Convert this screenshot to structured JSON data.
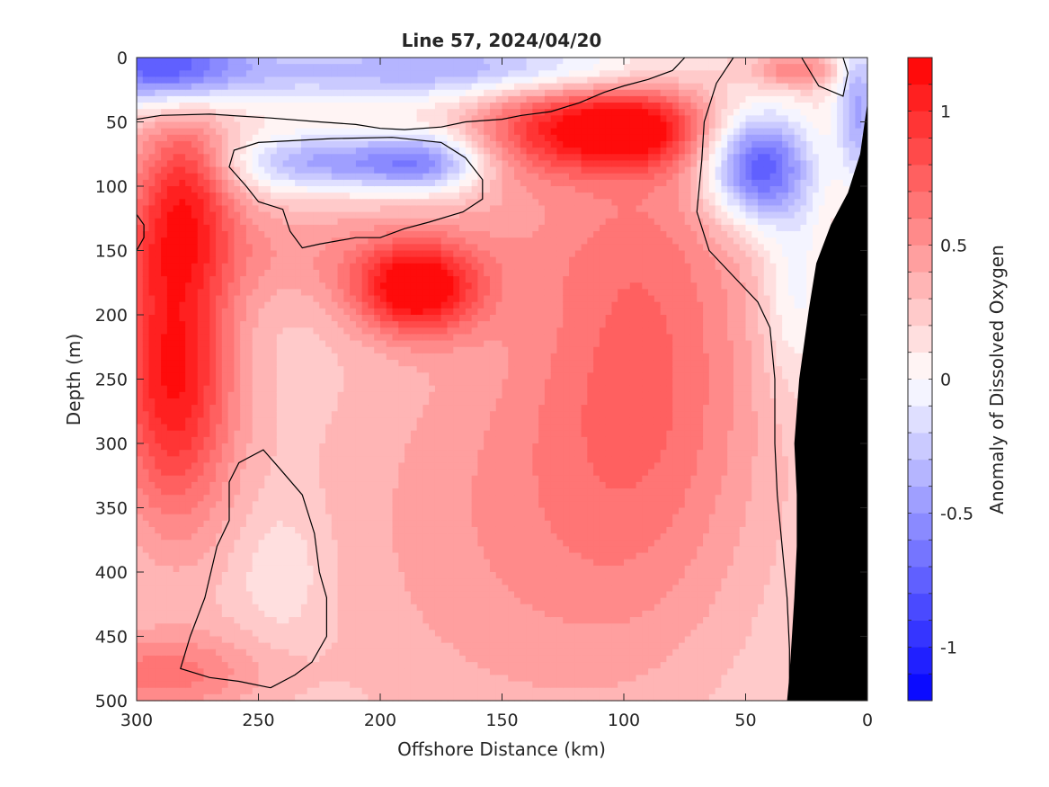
{
  "chart_data": {
    "type": "heatmap",
    "title": "Line 57, 2024/04/20",
    "xlabel": "Offshore Distance (km)",
    "ylabel": "Depth (m)",
    "xlim": [
      300,
      0
    ],
    "ylim": [
      500,
      0
    ],
    "x_ticks": [
      300,
      250,
      200,
      150,
      100,
      50,
      0
    ],
    "x_tick_labels": [
      "300",
      "250",
      "200",
      "150",
      "100",
      "50",
      "0"
    ],
    "y_ticks": [
      0,
      50,
      100,
      150,
      200,
      250,
      300,
      350,
      400,
      450,
      500
    ],
    "y_tick_labels": [
      "0",
      "50",
      "100",
      "150",
      "200",
      "250",
      "300",
      "350",
      "400",
      "450",
      "500"
    ],
    "colorbar": {
      "label": "Anomaly of Dissolved Oxygen",
      "range": [
        -1.2,
        1.2
      ],
      "ticks": [
        1,
        0.5,
        0,
        -0.5,
        -1
      ],
      "tick_labels": [
        "1",
        "0.5",
        "0",
        "-0.5",
        "-1"
      ],
      "levels": 24,
      "low_color": "#0000ff",
      "mid_color": "#ffffff",
      "high_color": "#ff0000"
    },
    "features": [
      {
        "kind": "negative",
        "x": 290,
        "y": 5,
        "sx": 22,
        "sy": 22,
        "amp": -0.75
      },
      {
        "kind": "negative",
        "x": 215,
        "y": 10,
        "sx": 80,
        "sy": 18,
        "amp": -0.45
      },
      {
        "kind": "negative",
        "x": 140,
        "y": 8,
        "sx": 40,
        "sy": 15,
        "amp": -0.3
      },
      {
        "kind": "negative",
        "x": 225,
        "y": 82,
        "sx": 25,
        "sy": 16,
        "amp": -0.6
      },
      {
        "kind": "negative",
        "x": 182,
        "y": 82,
        "sx": 18,
        "sy": 16,
        "amp": -0.7
      },
      {
        "kind": "negative",
        "x": 45,
        "y": 85,
        "sx": 15,
        "sy": 30,
        "amp": -1.05
      },
      {
        "kind": "negative",
        "x": 30,
        "y": 180,
        "sx": 10,
        "sy": 55,
        "amp": -0.3
      },
      {
        "kind": "negative",
        "x": 4,
        "y": 40,
        "sx": 6,
        "sy": 40,
        "amp": -0.6
      },
      {
        "kind": "negative",
        "x": 240,
        "y": 400,
        "sx": 12,
        "sy": 35,
        "amp": -0.15
      },
      {
        "kind": "positive",
        "x": 285,
        "y": 240,
        "sx": 18,
        "sy": 90,
        "amp": 0.95
      },
      {
        "kind": "positive",
        "x": 280,
        "y": 95,
        "sx": 14,
        "sy": 40,
        "amp": 0.55
      },
      {
        "kind": "positive",
        "x": 185,
        "y": 180,
        "sx": 18,
        "sy": 25,
        "amp": 0.95
      },
      {
        "kind": "positive",
        "x": 100,
        "y": 55,
        "sx": 22,
        "sy": 22,
        "amp": 0.95
      },
      {
        "kind": "positive",
        "x": 140,
        "y": 55,
        "sx": 20,
        "sy": 30,
        "amp": 0.45
      },
      {
        "kind": "positive",
        "x": 90,
        "y": 220,
        "sx": 35,
        "sy": 150,
        "amp": 0.45
      },
      {
        "kind": "positive",
        "x": 150,
        "y": 360,
        "sx": 60,
        "sy": 140,
        "amp": 0.3
      },
      {
        "kind": "positive",
        "x": 240,
        "y": 150,
        "sx": 70,
        "sy": 30,
        "amp": 0.25
      },
      {
        "kind": "positive",
        "x": 290,
        "y": 480,
        "sx": 30,
        "sy": 25,
        "amp": 0.45
      },
      {
        "kind": "positive",
        "x": 30,
        "y": 10,
        "sx": 12,
        "sy": 10,
        "amp": 0.45
      }
    ],
    "zero_contours": [
      [
        [
          300,
          48
        ],
        [
          290,
          45
        ],
        [
          270,
          44
        ],
        [
          245,
          47
        ],
        [
          225,
          50
        ],
        [
          210,
          52
        ],
        [
          200,
          55
        ],
        [
          190,
          56
        ],
        [
          175,
          54
        ],
        [
          165,
          50
        ],
        [
          158,
          49
        ],
        [
          150,
          48
        ],
        [
          142,
          45
        ],
        [
          130,
          42
        ],
        [
          118,
          35
        ],
        [
          108,
          27
        ],
        [
          100,
          22
        ],
        [
          90,
          17
        ],
        [
          80,
          10
        ],
        [
          75,
          0
        ]
      ],
      [
        [
          195,
          62
        ],
        [
          220,
          63
        ],
        [
          250,
          66
        ],
        [
          260,
          72
        ],
        [
          262,
          85
        ],
        [
          255,
          100
        ],
        [
          250,
          112
        ],
        [
          240,
          118
        ],
        [
          237,
          135
        ],
        [
          232,
          148
        ],
        [
          225,
          145
        ],
        [
          210,
          140
        ],
        [
          200,
          140
        ],
        [
          190,
          133
        ],
        [
          180,
          128
        ],
        [
          166,
          120
        ],
        [
          158,
          110
        ],
        [
          158,
          95
        ],
        [
          165,
          78
        ],
        [
          175,
          66
        ],
        [
          195,
          62
        ]
      ],
      [
        [
          245,
          490
        ],
        [
          235,
          480
        ],
        [
          228,
          470
        ],
        [
          222,
          450
        ],
        [
          222,
          420
        ],
        [
          225,
          400
        ],
        [
          227,
          370
        ],
        [
          232,
          340
        ],
        [
          242,
          318
        ],
        [
          248,
          305
        ],
        [
          258,
          315
        ],
        [
          262,
          330
        ],
        [
          262,
          360
        ],
        [
          267,
          380
        ],
        [
          272,
          420
        ],
        [
          278,
          450
        ],
        [
          282,
          475
        ],
        [
          270,
          482
        ],
        [
          258,
          485
        ],
        [
          245,
          490
        ]
      ],
      [
        [
          55,
          0
        ],
        [
          62,
          20
        ],
        [
          67,
          50
        ],
        [
          68,
          80
        ],
        [
          70,
          120
        ],
        [
          65,
          150
        ],
        [
          55,
          170
        ],
        [
          45,
          190
        ],
        [
          40,
          210
        ],
        [
          38,
          250
        ],
        [
          38,
          300
        ],
        [
          37,
          340
        ],
        [
          35,
          380
        ],
        [
          33,
          420
        ],
        [
          32,
          460
        ],
        [
          32,
          500
        ]
      ],
      [
        [
          27,
          0
        ],
        [
          20,
          22
        ],
        [
          10,
          30
        ],
        [
          8,
          12
        ],
        [
          10,
          0
        ]
      ],
      [
        [
          300,
          122
        ],
        [
          297,
          130
        ],
        [
          297,
          140
        ],
        [
          300,
          150
        ]
      ]
    ],
    "bathymetry": [
      [
        33,
        500
      ],
      [
        32,
        480
      ],
      [
        30,
        420
      ],
      [
        29,
        380
      ],
      [
        29,
        340
      ],
      [
        30,
        300
      ],
      [
        28,
        250
      ],
      [
        24,
        195
      ],
      [
        21,
        160
      ],
      [
        15,
        130
      ],
      [
        8,
        105
      ],
      [
        3,
        75
      ],
      [
        0,
        35
      ],
      [
        0,
        500
      ]
    ]
  }
}
